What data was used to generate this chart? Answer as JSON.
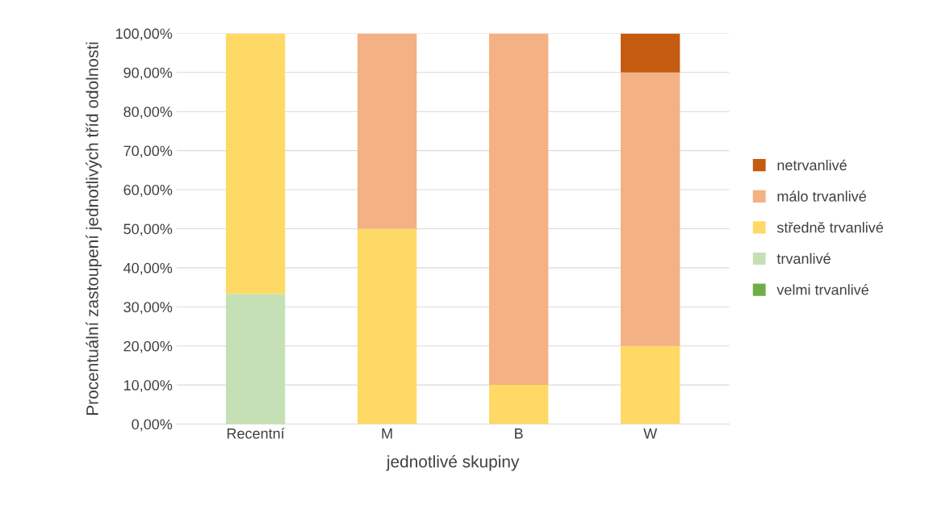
{
  "chart_data": {
    "type": "bar",
    "stacked": true,
    "xlabel": "jednotlivé skupiny",
    "ylabel": "Procentuální zastoupení jednotlivých tříd odolnosti",
    "categories": [
      "Recentní",
      "M",
      "B",
      "W"
    ],
    "series": [
      {
        "name": "velmi trvanlivé",
        "color": "#70ad47",
        "values": [
          0,
          0,
          0,
          0
        ]
      },
      {
        "name": "trvanlivé",
        "color": "#c5e0b4",
        "values": [
          33.3,
          0,
          0,
          0
        ]
      },
      {
        "name": "středně trvanlivé",
        "color": "#ffd966",
        "values": [
          66.7,
          50,
          10,
          20
        ]
      },
      {
        "name": "málo trvanlivé",
        "color": "#f4b183",
        "values": [
          0,
          50,
          90,
          70
        ]
      },
      {
        "name": "netrvanlivé",
        "color": "#c55a11",
        "values": [
          0,
          0,
          0,
          10
        ]
      }
    ],
    "ylim": [
      0,
      100
    ],
    "yticks": [
      {
        "value": 0,
        "label": "0,00%"
      },
      {
        "value": 10,
        "label": "10,00%"
      },
      {
        "value": 20,
        "label": "20,00%"
      },
      {
        "value": 30,
        "label": "30,00%"
      },
      {
        "value": 40,
        "label": "40,00%"
      },
      {
        "value": 50,
        "label": "50,00%"
      },
      {
        "value": 60,
        "label": "60,00%"
      },
      {
        "value": 70,
        "label": "70,00%"
      },
      {
        "value": 80,
        "label": "80,00%"
      },
      {
        "value": 90,
        "label": "90,00%"
      },
      {
        "value": 100,
        "label": "100,00%"
      }
    ],
    "grid": "y",
    "legend": "right"
  }
}
